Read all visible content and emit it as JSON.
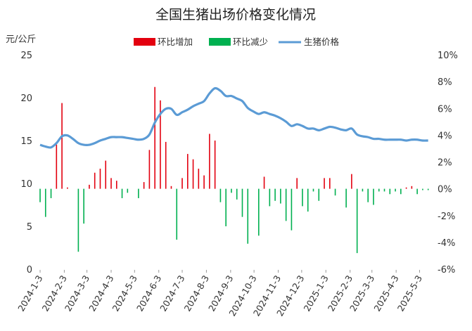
{
  "chart_data": {
    "type": "bar+line",
    "title": "全国生猪出场价格变化情况",
    "left_axis": {
      "label": "元/公斤",
      "range": [
        0,
        25
      ],
      "ticks": [
        "0",
        "5",
        "10",
        "15",
        "20",
        "25"
      ]
    },
    "right_axis": {
      "range": [
        -6,
        10
      ],
      "ticks": [
        "-6%",
        "-4%",
        "-2%",
        "0%",
        "2%",
        "4%",
        "6%",
        "8%",
        "10%"
      ]
    },
    "x_tick_labels": [
      "2024-1-3",
      "2024-2-3",
      "2024-3-3",
      "2024-4-3",
      "2024-5-3",
      "2024-6-3",
      "2024-7-3",
      "2024-8-3",
      "2024-9-3",
      "2024-10-3",
      "2024-11-3",
      "2024-12-3",
      "2025-1-3",
      "2025-2-3",
      "2025-3-3",
      "2025-4-3",
      "2025-5-3"
    ],
    "legend": [
      {
        "name": "环比增加",
        "color": "#e3000f",
        "kind": "bar"
      },
      {
        "name": "环比减少",
        "color": "#00b050",
        "kind": "bar"
      },
      {
        "name": "生猪价格",
        "color": "#5b9bd5",
        "kind": "line"
      }
    ],
    "legend_position": "top",
    "grid": false,
    "frequency": "weekly",
    "start_date": "2024-1-3",
    "series": [
      {
        "name": "生猪价格",
        "axis": "left",
        "unit": "元/公斤",
        "values": [
          14.5,
          14.3,
          14.2,
          14.7,
          15.5,
          15.6,
          15.2,
          14.7,
          14.5,
          14.5,
          14.7,
          15.0,
          15.2,
          15.4,
          15.4,
          15.4,
          15.3,
          15.2,
          15.1,
          15.2,
          15.7,
          17.1,
          18.1,
          18.7,
          18.7,
          18.0,
          18.3,
          18.6,
          19.0,
          19.3,
          19.6,
          20.5,
          21.1,
          20.8,
          20.2,
          20.2,
          19.9,
          19.6,
          18.8,
          18.4,
          18.1,
          18.3,
          18.1,
          17.9,
          17.6,
          17.2,
          16.7,
          16.9,
          16.7,
          16.4,
          16.4,
          16.2,
          16.4,
          16.6,
          16.5,
          16.3,
          16.2,
          16.4,
          15.7,
          15.5,
          15.4,
          15.2,
          15.2,
          15.1,
          15.1,
          15.1,
          15.1,
          15.0,
          15.1,
          15.1,
          15.0,
          15.0
        ]
      },
      {
        "name": "环比",
        "axis": "right",
        "unit": "%",
        "values": [
          -1.0,
          -2.1,
          -0.7,
          3.3,
          6.4,
          0.1,
          0,
          -4.7,
          -2.6,
          0.3,
          1.2,
          1.5,
          2.1,
          0.8,
          0.6,
          -0.7,
          -0.3,
          0,
          -0.7,
          0.5,
          2.9,
          7.6,
          6.6,
          3.5,
          0.2,
          -3.8,
          0.8,
          2.6,
          2.2,
          1.5,
          1.0,
          4.1,
          3.6,
          -1.0,
          -2.8,
          -0.3,
          -0.8,
          -2.1,
          -4.1,
          0,
          -3.5,
          0.9,
          -1.3,
          -0.9,
          -1.1,
          -2.4,
          -3.1,
          0.8,
          -1.3,
          -1.7,
          -0.2,
          -0.9,
          0.8,
          0.8,
          -0.5,
          0,
          -1.4,
          1.1,
          -4.8,
          -0.2,
          -1.0,
          -1.2,
          -0.2,
          -0.2,
          -0.4,
          -0.2,
          -0.4,
          0.1,
          0.2,
          -0.4,
          -0.1,
          -0.1
        ]
      }
    ]
  }
}
